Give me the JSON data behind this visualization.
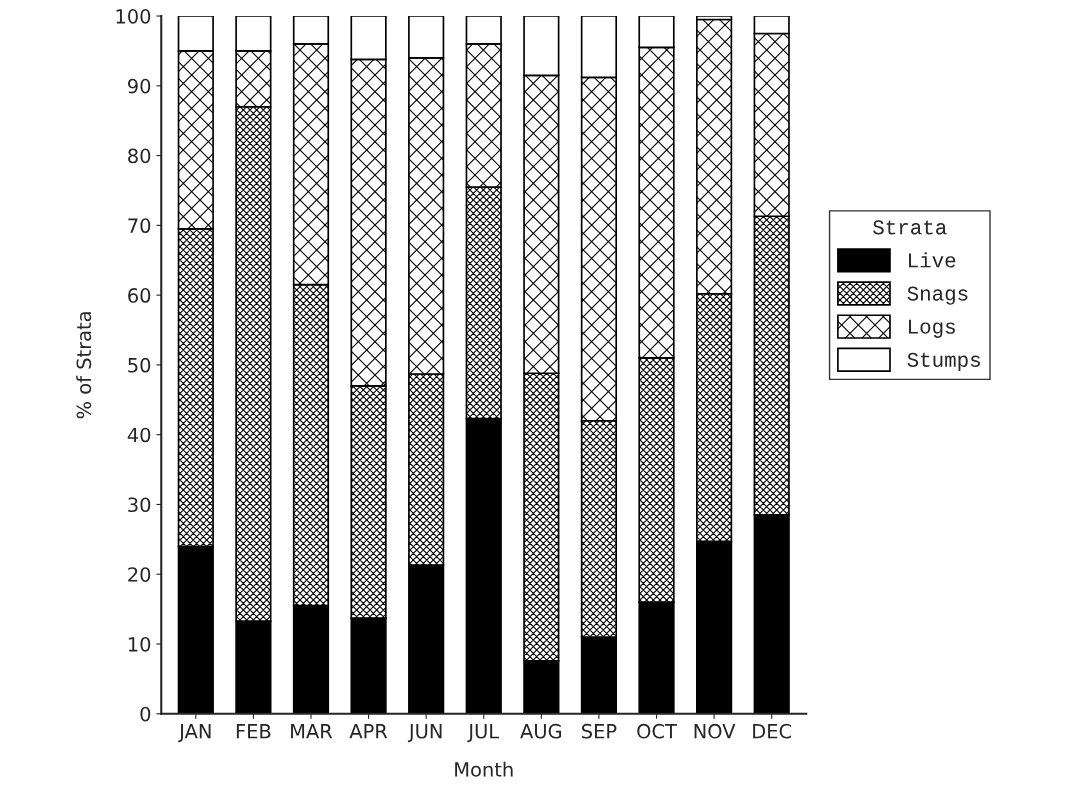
{
  "chart_data": {
    "type": "bar",
    "stacked": true,
    "xlabel": "Month",
    "ylabel": "% of Strata",
    "legend_title": "Strata",
    "legend": "right",
    "categories": [
      "JAN",
      "FEB",
      "MAR",
      "APR",
      "JUN",
      "JUL",
      "AUG",
      "SEP",
      "OCT",
      "NOV",
      "DEC"
    ],
    "series": [
      {
        "name": "Live",
        "color": "#000000",
        "values": [
          24,
          13.3,
          15.5,
          13.7,
          21.3,
          42.3,
          7.6,
          11,
          16,
          24.7,
          28.5
        ]
      },
      {
        "name": "Snags",
        "color": "#000000",
        "values": [
          45.5,
          73.7,
          46,
          33.3,
          27.4,
          33.2,
          41.2,
          31,
          35,
          35.5,
          42.8
        ]
      },
      {
        "name": "Logs",
        "color": "#000000",
        "values": [
          25.5,
          8,
          34.5,
          46.8,
          45.3,
          20.5,
          42.7,
          49.2,
          44.5,
          39.3,
          26.2
        ]
      },
      {
        "name": "Stumps",
        "color": "#ffffff",
        "values": [
          5,
          5,
          4,
          6.2,
          6,
          4,
          8.5,
          8.8,
          4.5,
          0.5,
          2.5
        ]
      }
    ],
    "ylim": [
      0,
      100
    ],
    "yticks": [
      0,
      10,
      20,
      30,
      40,
      50,
      60,
      70,
      80,
      90,
      100
    ],
    "grid": false
  }
}
